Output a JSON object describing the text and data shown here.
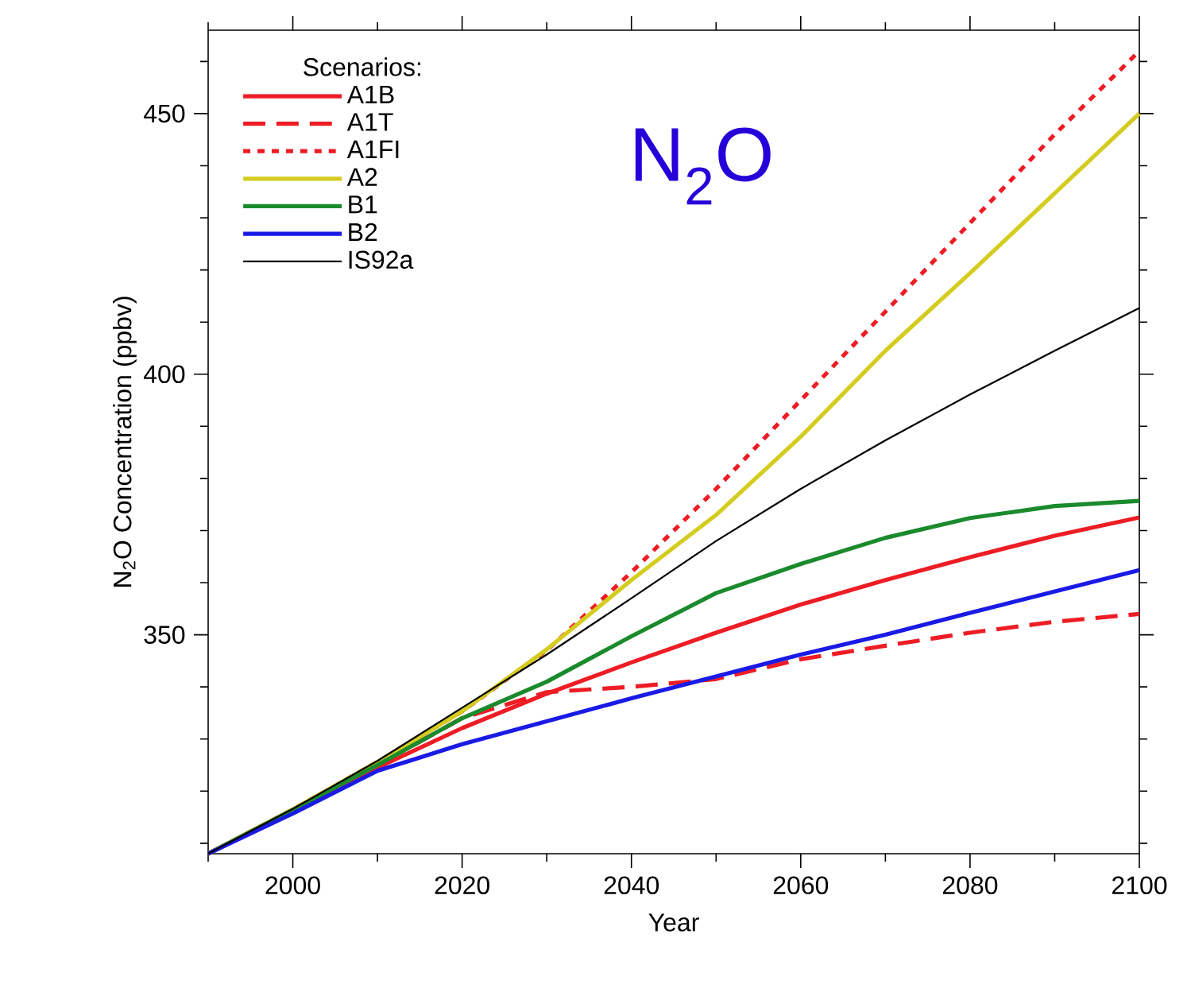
{
  "chart_data": {
    "type": "line",
    "xlabel": "Year",
    "ylabel": "N$_{2}$O Concentration (ppbv)",
    "legend_title": "Scenarios:",
    "annotations": [
      "N$_{2}$O"
    ],
    "x": [
      1990,
      2000,
      2010,
      2020,
      2030,
      2040,
      2050,
      2060,
      2070,
      2080,
      2090,
      2100
    ],
    "series": [
      {
        "name": "A1B",
        "color": "#ee1c24",
        "line_style": "solid",
        "values": [
          308,
          316.4,
          324.5,
          332.1,
          338.7,
          344.7,
          350.4,
          355.8,
          360.5,
          364.9,
          369,
          372.5
        ]
      },
      {
        "name": "A1T",
        "color": "#ee1c24",
        "line_style": "dashed",
        "values": [
          308,
          316.4,
          325,
          334,
          339,
          340,
          341.5,
          345.3,
          347.9,
          350.4,
          352.5,
          354
        ]
      },
      {
        "name": "A1FI",
        "color": "#ee1c24",
        "line_style": "dotted",
        "values": [
          308,
          316.5,
          325.6,
          335.3,
          347,
          362,
          378,
          395,
          412,
          429,
          446,
          462
        ]
      },
      {
        "name": "A2",
        "color": "#d4cc1e",
        "line_style": "solid",
        "values": [
          308,
          316.5,
          325.6,
          335.3,
          347.2,
          360.5,
          373,
          388,
          404.5,
          419.4,
          434.7,
          450
        ]
      },
      {
        "name": "B1",
        "color": "#1a8a2c",
        "line_style": "solid",
        "values": [
          308,
          316.4,
          325,
          334,
          341,
          349.7,
          358,
          363.6,
          368.6,
          372.4,
          374.7,
          375.7
        ]
      },
      {
        "name": "B2",
        "color": "#1a1ae6",
        "line_style": "solid",
        "values": [
          308,
          315.7,
          323.9,
          329,
          333.4,
          337.8,
          342,
          346.2,
          350,
          354.2,
          358.3,
          362.4
        ]
      },
      {
        "name": "IS92a",
        "color": "#000000",
        "line_style": "solid",
        "values": [
          308,
          316.6,
          325.8,
          336,
          346.2,
          357,
          368,
          378,
          387.3,
          396.1,
          404.5,
          412.7
        ]
      }
    ],
    "xlim": [
      1990,
      2100
    ],
    "ylim": [
      308,
      466
    ],
    "xticks": [
      {
        "value": 1990,
        "label": null
      },
      2000,
      {
        "value": 2010,
        "label": null
      },
      2020,
      {
        "value": 2030,
        "label": null
      },
      2040,
      {
        "value": 2050,
        "label": null
      },
      2060,
      {
        "value": 2070,
        "label": null
      },
      2080,
      {
        "value": 2090,
        "label": null
      },
      2100
    ],
    "yticks": [
      {
        "value": 310,
        "label": null
      },
      {
        "value": 320,
        "label": null
      },
      {
        "value": 330,
        "label": null
      },
      {
        "value": 340,
        "label": null
      },
      350,
      {
        "value": 360,
        "label": null
      },
      {
        "value": 370,
        "label": null
      },
      {
        "value": 380,
        "label": null
      },
      {
        "value": 390,
        "label": null
      },
      400,
      {
        "value": 410,
        "label": null
      },
      {
        "value": 420,
        "label": null
      },
      {
        "value": 430,
        "label": null
      },
      {
        "value": 440,
        "label": null
      },
      450,
      {
        "value": 460,
        "label": null
      }
    ],
    "legend": "top left",
    "grid": false,
    "marker": "none"
  }
}
